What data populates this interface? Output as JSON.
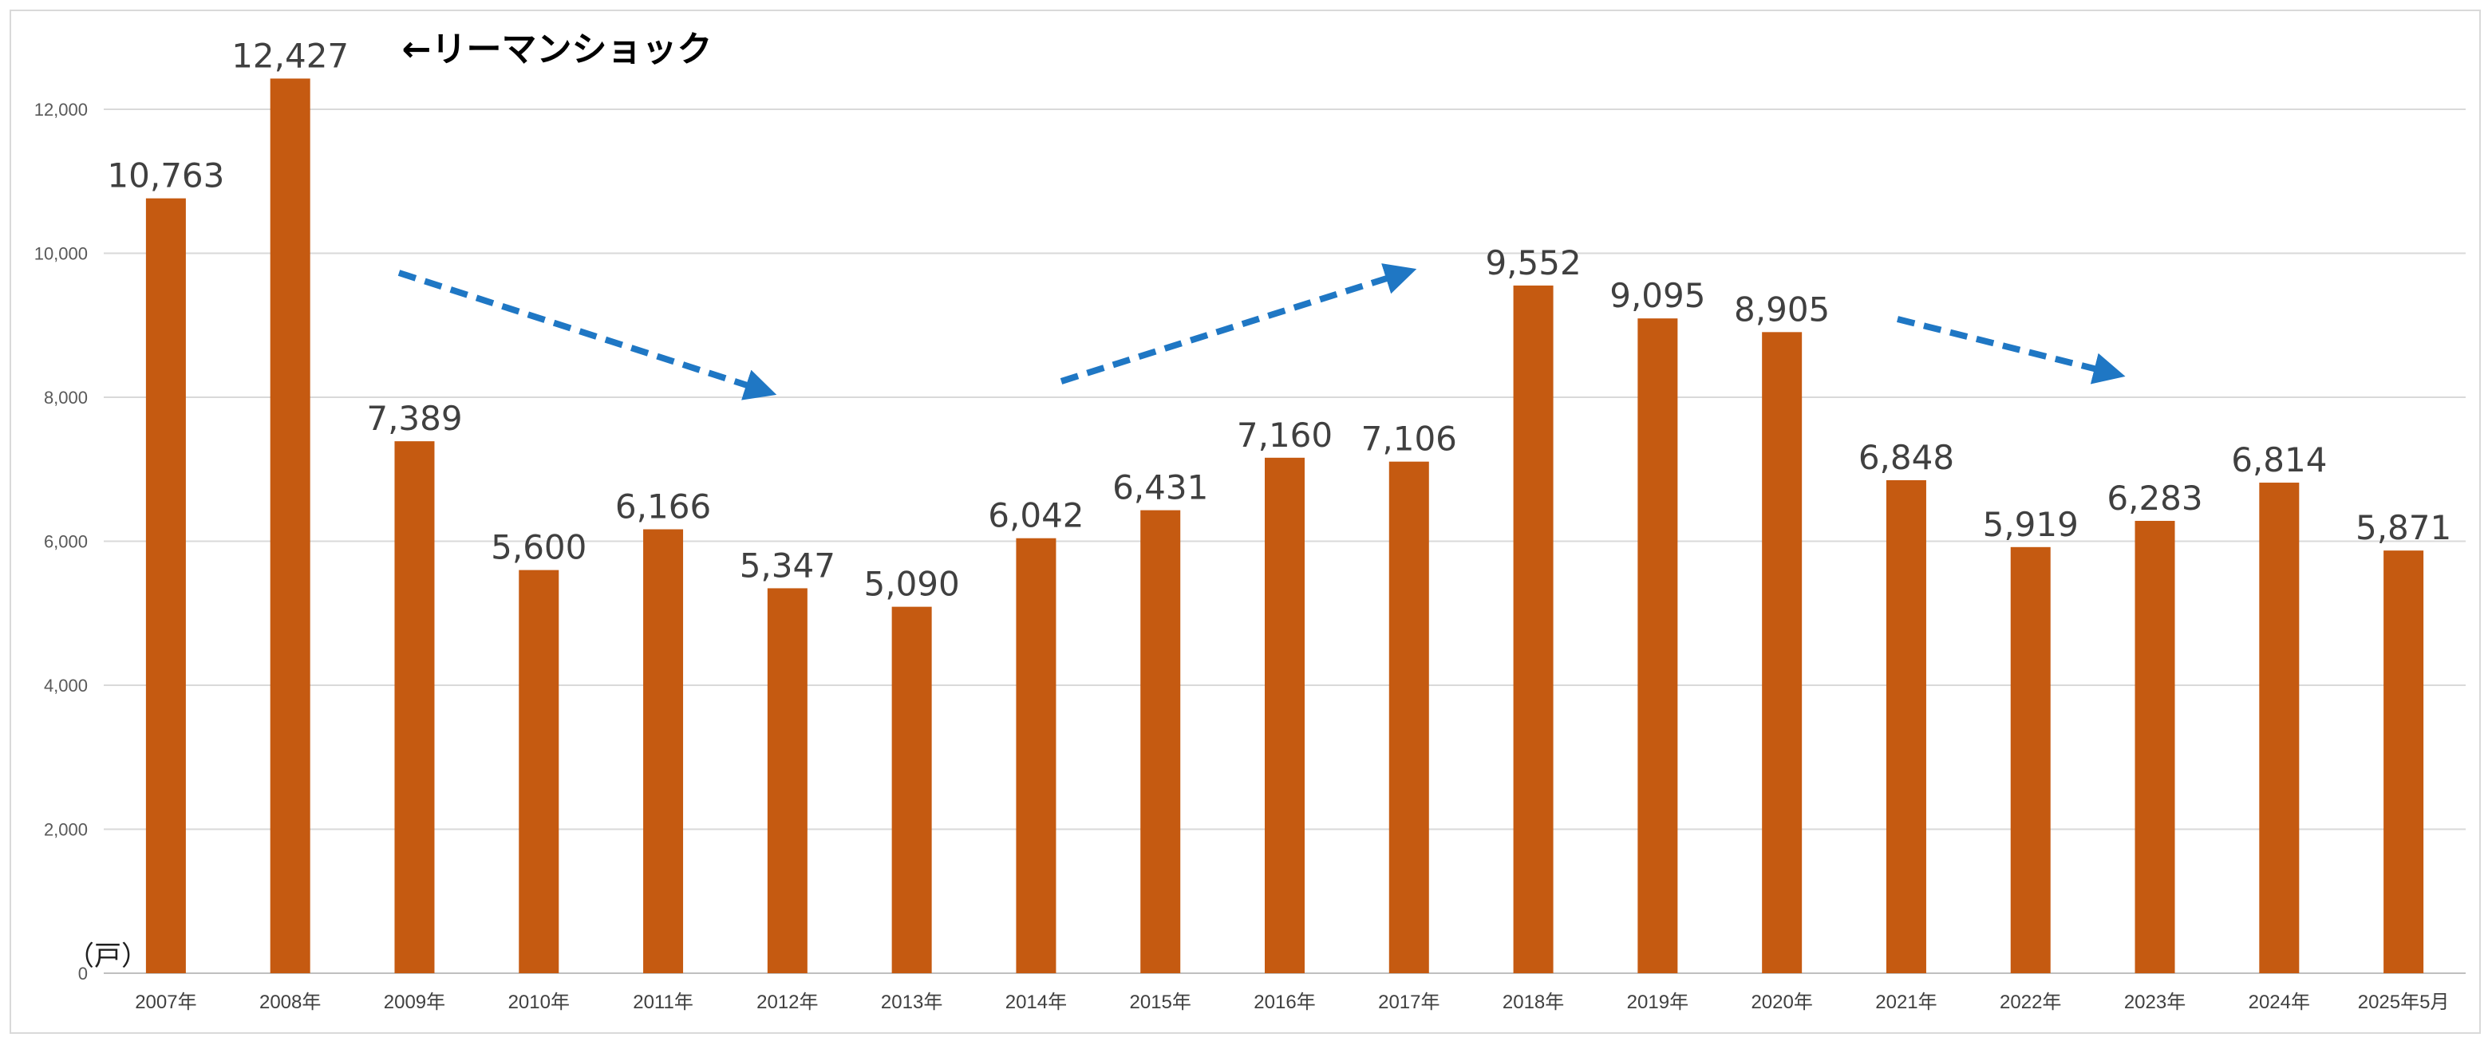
{
  "chart_data": {
    "type": "bar",
    "categories": [
      "2007年",
      "2008年",
      "2009年",
      "2010年",
      "2011年",
      "2012年",
      "2013年",
      "2014年",
      "2015年",
      "2016年",
      "2017年",
      "2018年",
      "2019年",
      "2020年",
      "2021年",
      "2022年",
      "2023年",
      "2024年",
      "2025年5月"
    ],
    "values": [
      10763,
      12427,
      7389,
      5600,
      6166,
      5347,
      5090,
      6042,
      6431,
      7160,
      7106,
      9552,
      9095,
      8905,
      6848,
      5919,
      6283,
      6814,
      5871
    ],
    "value_labels": [
      "10,763",
      "12,427",
      "7,389",
      "5,600",
      "6,166",
      "5,347",
      "5,090",
      "6,042",
      "6,431",
      "7,160",
      "7,106",
      "9,552",
      "9,095",
      "8,905",
      "6,848",
      "5,919",
      "6,283",
      "6,814",
      "5,871"
    ],
    "title": "",
    "xlabel": "",
    "ylabel": "（戸）",
    "ylim": [
      0,
      12000
    ],
    "yticks": [
      0,
      2000,
      4000,
      6000,
      8000,
      10000,
      12000
    ],
    "ytick_labels": [
      "0",
      "2,000",
      "4,000",
      "6,000",
      "8,000",
      "10,000",
      "12,000"
    ],
    "grid": true,
    "legend": "none",
    "bar_color": "#C55A11",
    "annotations": [
      {
        "text": "←リーマンショック",
        "near_category": "2008年"
      }
    ],
    "trend_arrows": [
      {
        "direction": "down",
        "from": "2009年",
        "to": "2012年"
      },
      {
        "direction": "up",
        "from": "2014年",
        "to": "2017年"
      },
      {
        "direction": "down",
        "from": "2021年",
        "to": "2023年"
      }
    ],
    "arrow_color": "#1F77C4"
  }
}
